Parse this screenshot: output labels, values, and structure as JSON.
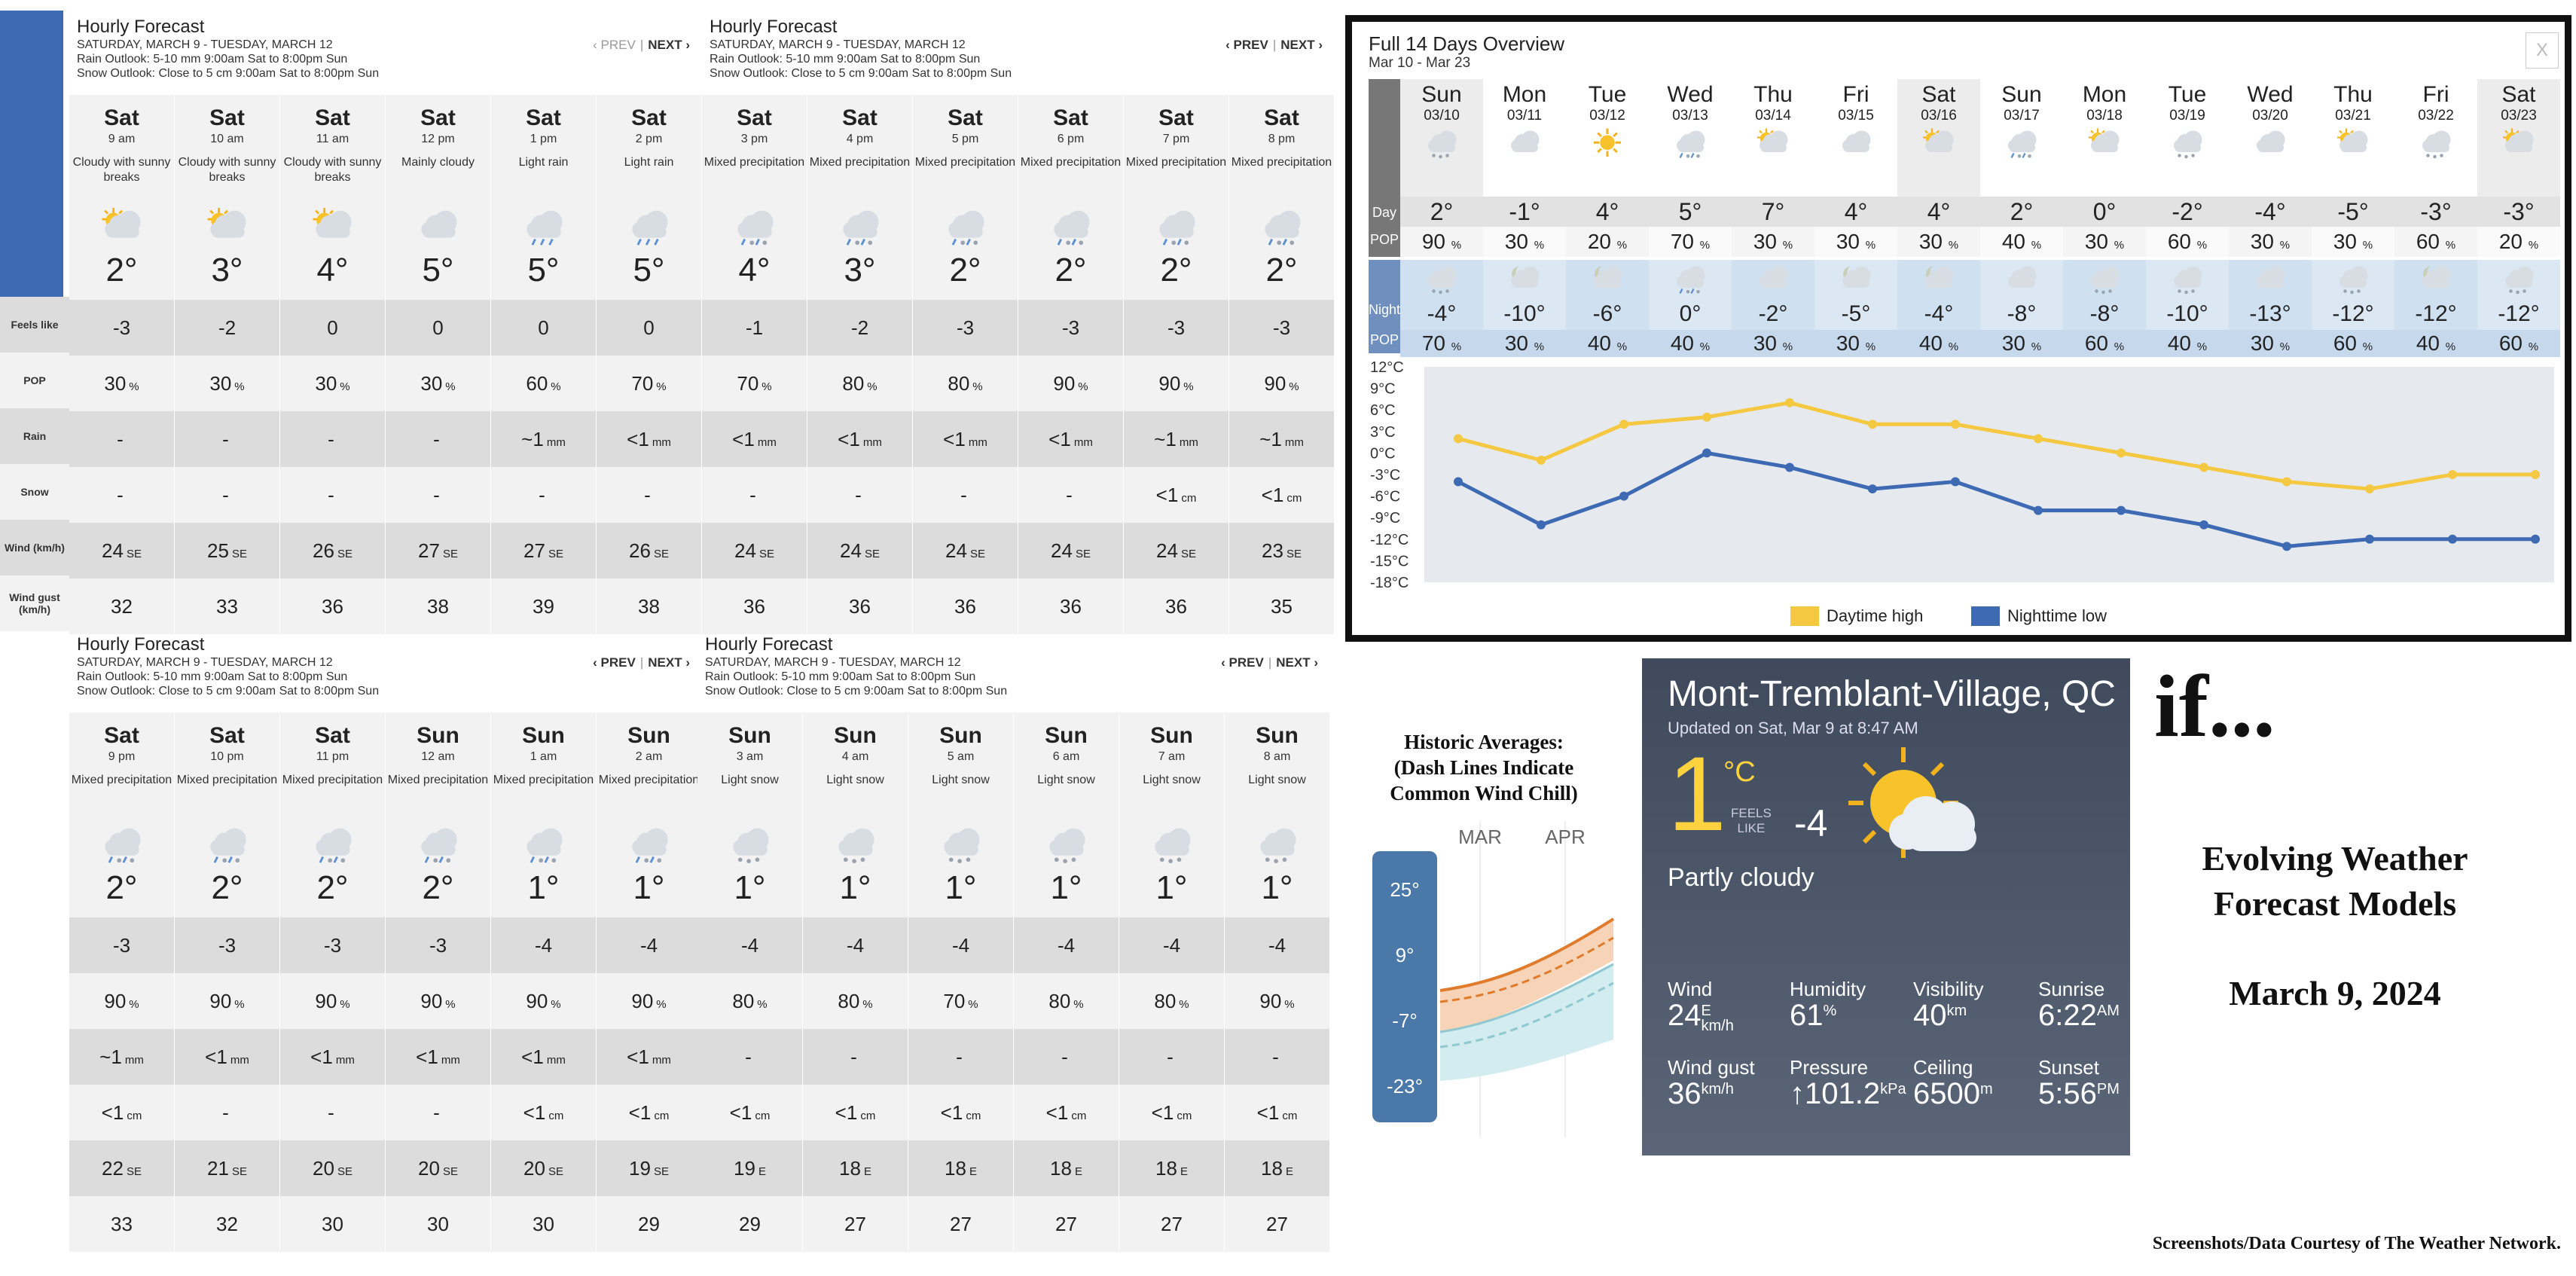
{
  "panels": [
    {
      "title": "Hourly Forecast",
      "range": "SATURDAY, MARCH 9 - TUESDAY, MARCH 12",
      "rain": "Rain Outlook: 5-10 mm 9:00am Sat to 8:00pm Sun",
      "snow": "Snow Outlook: Close to 5 cm 9:00am Sat to 8:00pm Sun",
      "prev": "‹ PREV",
      "next": "NEXT ›",
      "prev_dim": true,
      "cols": [
        {
          "day": "Sat",
          "time": "9 am",
          "cond": "Cloudy with sunny breaks",
          "icon": "sun-cloud",
          "temp": "2°",
          "feels": "-3",
          "pop": "30",
          "pu": "%",
          "rain": "-",
          "ru": "",
          "snow": "-",
          "su": "",
          "wind": "24",
          "dir": "SE",
          "gust": "32"
        },
        {
          "day": "Sat",
          "time": "10 am",
          "cond": "Cloudy with sunny breaks",
          "icon": "sun-cloud",
          "temp": "3°",
          "feels": "-2",
          "pop": "30",
          "pu": "%",
          "rain": "-",
          "ru": "",
          "snow": "-",
          "su": "",
          "wind": "25",
          "dir": "SE",
          "gust": "33"
        },
        {
          "day": "Sat",
          "time": "11 am",
          "cond": "Cloudy with sunny breaks",
          "icon": "sun-cloud",
          "temp": "4°",
          "feels": "0",
          "pop": "30",
          "pu": "%",
          "rain": "-",
          "ru": "",
          "snow": "-",
          "su": "",
          "wind": "26",
          "dir": "SE",
          "gust": "36"
        },
        {
          "day": "Sat",
          "time": "12 pm",
          "cond": "Mainly cloudy",
          "icon": "cloud",
          "temp": "5°",
          "feels": "0",
          "pop": "30",
          "pu": "%",
          "rain": "-",
          "ru": "",
          "snow": "-",
          "su": "",
          "wind": "27",
          "dir": "SE",
          "gust": "38"
        },
        {
          "day": "Sat",
          "time": "1 pm",
          "cond": "Light rain",
          "icon": "rain",
          "temp": "5°",
          "feels": "0",
          "pop": "60",
          "pu": "%",
          "rain": "~1",
          "ru": "mm",
          "snow": "-",
          "su": "",
          "wind": "27",
          "dir": "SE",
          "gust": "39"
        },
        {
          "day": "Sat",
          "time": "2 pm",
          "cond": "Light rain",
          "icon": "rain",
          "temp": "5°",
          "feels": "0",
          "pop": "70",
          "pu": "%",
          "rain": "<1",
          "ru": "mm",
          "snow": "-",
          "su": "",
          "wind": "26",
          "dir": "SE",
          "gust": "38"
        }
      ]
    },
    {
      "title": "Hourly Forecast",
      "range": "SATURDAY, MARCH 9 - TUESDAY, MARCH 12",
      "rain": "Rain Outlook: 5-10 mm 9:00am Sat to 8:00pm Sun",
      "snow": "Snow Outlook: Close to 5 cm 9:00am Sat to 8:00pm Sun",
      "prev": "‹ PREV",
      "next": "NEXT ›",
      "prev_dim": false,
      "cols": [
        {
          "day": "Sat",
          "time": "3 pm",
          "cond": "Mixed precipitation",
          "icon": "mixed",
          "temp": "4°",
          "feels": "-1",
          "pop": "70",
          "pu": "%",
          "rain": "<1",
          "ru": "mm",
          "snow": "-",
          "su": "",
          "wind": "24",
          "dir": "SE",
          "gust": "36"
        },
        {
          "day": "Sat",
          "time": "4 pm",
          "cond": "Mixed precipitation",
          "icon": "mixed",
          "temp": "3°",
          "feels": "-2",
          "pop": "80",
          "pu": "%",
          "rain": "<1",
          "ru": "mm",
          "snow": "-",
          "su": "",
          "wind": "24",
          "dir": "SE",
          "gust": "36"
        },
        {
          "day": "Sat",
          "time": "5 pm",
          "cond": "Mixed precipitation",
          "icon": "mixed",
          "temp": "2°",
          "feels": "-3",
          "pop": "80",
          "pu": "%",
          "rain": "<1",
          "ru": "mm",
          "snow": "-",
          "su": "",
          "wind": "24",
          "dir": "SE",
          "gust": "36"
        },
        {
          "day": "Sat",
          "time": "6 pm",
          "cond": "Mixed precipitation",
          "icon": "mixed",
          "temp": "2°",
          "feels": "-3",
          "pop": "90",
          "pu": "%",
          "rain": "<1",
          "ru": "mm",
          "snow": "-",
          "su": "",
          "wind": "24",
          "dir": "SE",
          "gust": "36"
        },
        {
          "day": "Sat",
          "time": "7 pm",
          "cond": "Mixed precipitation",
          "icon": "mixed",
          "temp": "2°",
          "feels": "-3",
          "pop": "90",
          "pu": "%",
          "rain": "~1",
          "ru": "mm",
          "snow": "<1",
          "su": "cm",
          "wind": "24",
          "dir": "SE",
          "gust": "36"
        },
        {
          "day": "Sat",
          "time": "8 pm",
          "cond": "Mixed precipitation",
          "icon": "mixed",
          "temp": "2°",
          "feels": "-3",
          "pop": "90",
          "pu": "%",
          "rain": "~1",
          "ru": "mm",
          "snow": "<1",
          "su": "cm",
          "wind": "23",
          "dir": "SE",
          "gust": "35"
        }
      ]
    },
    {
      "title": "Hourly Forecast",
      "range": "SATURDAY, MARCH 9 - TUESDAY, MARCH 12",
      "rain": "Rain Outlook: 5-10 mm 9:00am Sat to 8:00pm Sun",
      "snow": "Snow Outlook: Close to 5 cm 9:00am Sat to 8:00pm Sun",
      "prev": "‹ PREV",
      "next": "NEXT ›",
      "prev_dim": false,
      "cols": [
        {
          "day": "Sat",
          "time": "9 pm",
          "cond": "Mixed precipitation",
          "icon": "mixed",
          "temp": "2°",
          "feels": "-3",
          "pop": "90",
          "pu": "%",
          "rain": "~1",
          "ru": "mm",
          "snow": "<1",
          "su": "cm",
          "wind": "22",
          "dir": "SE",
          "gust": "33"
        },
        {
          "day": "Sat",
          "time": "10 pm",
          "cond": "Mixed precipitation",
          "icon": "mixed",
          "temp": "2°",
          "feels": "-3",
          "pop": "90",
          "pu": "%",
          "rain": "<1",
          "ru": "mm",
          "snow": "-",
          "su": "",
          "wind": "21",
          "dir": "SE",
          "gust": "32"
        },
        {
          "day": "Sat",
          "time": "11 pm",
          "cond": "Mixed precipitation",
          "icon": "mixed",
          "temp": "2°",
          "feels": "-3",
          "pop": "90",
          "pu": "%",
          "rain": "<1",
          "ru": "mm",
          "snow": "-",
          "su": "",
          "wind": "20",
          "dir": "SE",
          "gust": "30"
        },
        {
          "day": "Sun",
          "time": "12 am",
          "cond": "Mixed precipitation",
          "icon": "mixed",
          "temp": "2°",
          "feels": "-3",
          "pop": "90",
          "pu": "%",
          "rain": "<1",
          "ru": "mm",
          "snow": "-",
          "su": "",
          "wind": "20",
          "dir": "SE",
          "gust": "30"
        },
        {
          "day": "Sun",
          "time": "1 am",
          "cond": "Mixed precipitation",
          "icon": "mixed",
          "temp": "1°",
          "feels": "-4",
          "pop": "90",
          "pu": "%",
          "rain": "<1",
          "ru": "mm",
          "snow": "<1",
          "su": "cm",
          "wind": "20",
          "dir": "SE",
          "gust": "30"
        },
        {
          "day": "Sun",
          "time": "2 am",
          "cond": "Mixed precipitation",
          "icon": "mixed",
          "temp": "1°",
          "feels": "-4",
          "pop": "90",
          "pu": "%",
          "rain": "<1",
          "ru": "mm",
          "snow": "<1",
          "su": "cm",
          "wind": "19",
          "dir": "SE",
          "gust": "29"
        }
      ]
    },
    {
      "title": "Hourly Forecast",
      "range": "SATURDAY, MARCH 9 - TUESDAY, MARCH 12",
      "rain": "Rain Outlook: 5-10 mm 9:00am Sat to 8:00pm Sun",
      "snow": "Snow Outlook: Close to 5 cm 9:00am Sat to 8:00pm Sun",
      "prev": "‹ PREV",
      "next": "NEXT ›",
      "prev_dim": false,
      "cols": [
        {
          "day": "Sun",
          "time": "3 am",
          "cond": "Light snow",
          "icon": "snow",
          "temp": "1°",
          "feels": "-4",
          "pop": "80",
          "pu": "%",
          "rain": "-",
          "ru": "",
          "snow": "<1",
          "su": "cm",
          "wind": "19",
          "dir": "E",
          "gust": "29"
        },
        {
          "day": "Sun",
          "time": "4 am",
          "cond": "Light snow",
          "icon": "snow",
          "temp": "1°",
          "feels": "-4",
          "pop": "80",
          "pu": "%",
          "rain": "-",
          "ru": "",
          "snow": "<1",
          "su": "cm",
          "wind": "18",
          "dir": "E",
          "gust": "27"
        },
        {
          "day": "Sun",
          "time": "5 am",
          "cond": "Light snow",
          "icon": "snow",
          "temp": "1°",
          "feels": "-4",
          "pop": "70",
          "pu": "%",
          "rain": "-",
          "ru": "",
          "snow": "<1",
          "su": "cm",
          "wind": "18",
          "dir": "E",
          "gust": "27"
        },
        {
          "day": "Sun",
          "time": "6 am",
          "cond": "Light snow",
          "icon": "snow",
          "temp": "1°",
          "feels": "-4",
          "pop": "80",
          "pu": "%",
          "rain": "-",
          "ru": "",
          "snow": "<1",
          "su": "cm",
          "wind": "18",
          "dir": "E",
          "gust": "27"
        },
        {
          "day": "Sun",
          "time": "7 am",
          "cond": "Light snow",
          "icon": "snow",
          "temp": "1°",
          "feels": "-4",
          "pop": "80",
          "pu": "%",
          "rain": "-",
          "ru": "",
          "snow": "<1",
          "su": "cm",
          "wind": "18",
          "dir": "E",
          "gust": "27"
        },
        {
          "day": "Sun",
          "time": "8 am",
          "cond": "Light snow",
          "icon": "snow",
          "temp": "1°",
          "feels": "-4",
          "pop": "90",
          "pu": "%",
          "rain": "-",
          "ru": "",
          "snow": "<1",
          "su": "cm",
          "wind": "18",
          "dir": "E",
          "gust": "27"
        }
      ]
    }
  ],
  "row_labels": [
    "Feels like",
    "POP",
    "Rain",
    "Snow",
    "Wind (km/h)",
    "Wind gust (km/h)"
  ],
  "overview": {
    "title": "Full 14 Days Overview",
    "range": "Mar 10 - Mar 23",
    "close": "X",
    "labels": {
      "day": "Day",
      "pop": "POP",
      "night": "Night",
      "pop2": "POP"
    },
    "days": [
      {
        "dow": "Sun",
        "date": "03/10",
        "dicon": "snow",
        "hi": "2°",
        "dpop": "90",
        "nicon": "snow",
        "lo": "-4°",
        "npop": "70"
      },
      {
        "dow": "Mon",
        "date": "03/11",
        "dicon": "cloud",
        "hi": "-1°",
        "dpop": "30",
        "nicon": "moon-cloud",
        "lo": "-10°",
        "npop": "30"
      },
      {
        "dow": "Tue",
        "date": "03/12",
        "dicon": "sun",
        "hi": "4°",
        "dpop": "20",
        "nicon": "moon-cloud",
        "lo": "-6°",
        "npop": "40"
      },
      {
        "dow": "Wed",
        "date": "03/13",
        "dicon": "mixed",
        "hi": "5°",
        "dpop": "70",
        "nicon": "mixed",
        "lo": "0°",
        "npop": "40"
      },
      {
        "dow": "Thu",
        "date": "03/14",
        "dicon": "sun-cloud",
        "hi": "7°",
        "dpop": "30",
        "nicon": "cloud",
        "lo": "-2°",
        "npop": "30"
      },
      {
        "dow": "Fri",
        "date": "03/15",
        "dicon": "cloud",
        "hi": "4°",
        "dpop": "30",
        "nicon": "moon-cloud",
        "lo": "-5°",
        "npop": "30"
      },
      {
        "dow": "Sat",
        "date": "03/16",
        "dicon": "sun-cloud",
        "hi": "4°",
        "dpop": "30",
        "nicon": "moon-cloud",
        "lo": "-4°",
        "npop": "40"
      },
      {
        "dow": "Sun",
        "date": "03/17",
        "dicon": "mixed",
        "hi": "2°",
        "dpop": "40",
        "nicon": "cloud",
        "lo": "-8°",
        "npop": "30"
      },
      {
        "dow": "Mon",
        "date": "03/18",
        "dicon": "sun-cloud",
        "hi": "0°",
        "dpop": "30",
        "nicon": "snow",
        "lo": "-8°",
        "npop": "60"
      },
      {
        "dow": "Tue",
        "date": "03/19",
        "dicon": "snow",
        "hi": "-2°",
        "dpop": "60",
        "nicon": "snow",
        "lo": "-10°",
        "npop": "40"
      },
      {
        "dow": "Wed",
        "date": "03/20",
        "dicon": "cloud",
        "hi": "-4°",
        "dpop": "30",
        "nicon": "cloud",
        "lo": "-13°",
        "npop": "30"
      },
      {
        "dow": "Thu",
        "date": "03/21",
        "dicon": "sun-cloud",
        "hi": "-5°",
        "dpop": "30",
        "nicon": "snow",
        "lo": "-12°",
        "npop": "60"
      },
      {
        "dow": "Fri",
        "date": "03/22",
        "dicon": "snow",
        "hi": "-3°",
        "dpop": "60",
        "nicon": "moon-cloud",
        "lo": "-12°",
        "npop": "40"
      },
      {
        "dow": "Sat",
        "date": "03/23",
        "dicon": "sun-cloud",
        "hi": "-3°",
        "dpop": "20",
        "nicon": "snow",
        "lo": "-12°",
        "npop": "60"
      }
    ],
    "unit_pct": "%"
  },
  "chart_data": {
    "type": "line",
    "x": [
      "03/10",
      "03/11",
      "03/12",
      "03/13",
      "03/14",
      "03/15",
      "03/16",
      "03/17",
      "03/18",
      "03/19",
      "03/20",
      "03/21",
      "03/22",
      "03/23"
    ],
    "series": [
      {
        "name": "Daytime high",
        "color": "#f5c842",
        "values": [
          2,
          -1,
          4,
          5,
          7,
          4,
          4,
          2,
          0,
          -2,
          -4,
          -5,
          -3,
          -3
        ]
      },
      {
        "name": "Nighttime low",
        "color": "#3d6ab3",
        "values": [
          -4,
          -10,
          -6,
          0,
          -2,
          -5,
          -4,
          -8,
          -8,
          -10,
          -13,
          -12,
          -12,
          -12
        ]
      }
    ],
    "yticks": [
      "12°C",
      "9°C",
      "6°C",
      "3°C",
      "0°C",
      "-3°C",
      "-6°C",
      "-9°C",
      "-12°C",
      "-15°C",
      "-18°C"
    ],
    "ylim": [
      -18,
      12
    ],
    "legend": "bottom-center",
    "grid": false
  },
  "historic": {
    "title_lines": [
      "Historic Averages:",
      "(Dash Lines Indicate",
      "Common Wind Chill)"
    ],
    "months": [
      "MAR",
      "APR"
    ],
    "scale": [
      "25°",
      "9°",
      "-7°",
      "-23°"
    ]
  },
  "widget": {
    "city": "Mont-Tremblant-Village, QC",
    "updated": "Updated on Sat, Mar 9 at 8:47 AM",
    "temp": "1",
    "unit": "°C",
    "feels_label_1": "FEELS",
    "feels_label_2": "LIKE",
    "feels": "-4",
    "condition": "Partly cloudy",
    "stats": [
      {
        "label": "Wind",
        "value": "24",
        "sup": "E",
        "sub": "km/h"
      },
      {
        "label": "Humidity",
        "value": "61",
        "sup": "%",
        "sub": ""
      },
      {
        "label": "Visibility",
        "value": "40",
        "sup": "km",
        "sub": ""
      },
      {
        "label": "Sunrise",
        "value": "6:22",
        "sup": "AM",
        "sub": ""
      },
      {
        "label": "Wind gust",
        "value": "36",
        "sup": "km/h",
        "sub": ""
      },
      {
        "label": "Pressure",
        "value": "↑101.2",
        "sup": "kPa",
        "sub": ""
      },
      {
        "label": "Ceiling",
        "value": "6500",
        "sup": "m",
        "sub": ""
      },
      {
        "label": "Sunset",
        "value": "5:56",
        "sup": "PM",
        "sub": ""
      }
    ]
  },
  "right": {
    "if": "if...",
    "evolving_1": "Evolving Weather",
    "evolving_2": "Forecast Models",
    "date": "March 9, 2024",
    "credit": "Screenshots/Data Courtesy of The Weather Network."
  },
  "colors": {
    "accent_blue": "#3d6ab3",
    "high_yellow": "#f5c842"
  }
}
